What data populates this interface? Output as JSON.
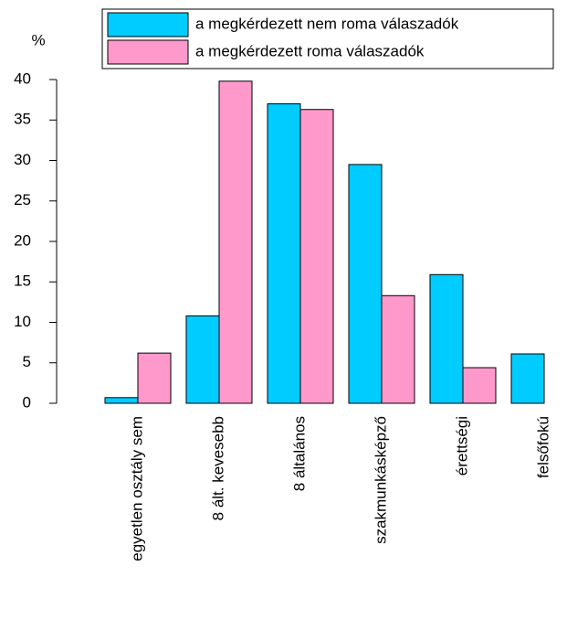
{
  "chart_data": {
    "type": "bar",
    "y_label": "%",
    "categories": [
      "egyetlen osztály sem",
      "8 ált. kevesebb",
      "8 általános",
      "szakmunkásképző",
      "érettségi",
      "felsőfokú"
    ],
    "series": [
      {
        "name": "a megkérdezett nem roma válaszadók",
        "color": "#00ccff",
        "values": [
          0.7,
          10.8,
          37,
          29.5,
          15.9,
          6.1
        ]
      },
      {
        "name": "a megkérdezett roma válaszadók",
        "color": "#ff99cc",
        "values": [
          6.2,
          39.8,
          36.3,
          13.3,
          4.4,
          null
        ]
      }
    ],
    "ylim": [
      0,
      40
    ],
    "yticks": [
      0,
      5,
      10,
      15,
      20,
      25,
      30,
      35,
      40
    ],
    "legend": "top-right"
  }
}
